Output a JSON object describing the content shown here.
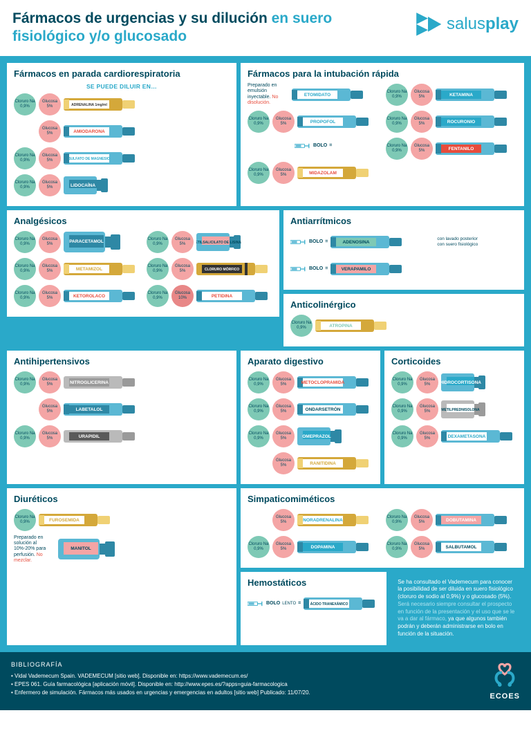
{
  "title_dark": "Fármacos de urgencias y su dilución ",
  "title_light": "en suero fisiológico y/o glucosado",
  "logo_text1": "salus",
  "logo_text2": "play",
  "colors": {
    "primary": "#2aa9c9",
    "dark": "#004a5e",
    "green": "#7ec9b5",
    "pink": "#f4a5a5",
    "pink_dark": "#e88787",
    "yellow": "#f0d174",
    "amber": "#d4a83a",
    "blue": "#5bb8d4",
    "blue_dark": "#2e88a5",
    "grey": "#9a9a9a",
    "dark_grey": "#5a5a5a"
  },
  "circles": {
    "cloruro": {
      "l1": "Cloruro Na",
      "l2": "0,9%"
    },
    "glucosa5": {
      "l1": "Glucosa",
      "l2": "5%"
    },
    "glucosa10": {
      "l1": "Glucosa",
      "l2": "10%"
    }
  },
  "sections": {
    "parada": {
      "title": "Fármacos en parada cardiorespiratoria",
      "subtitle": "SE PUEDE DILUIR EN…",
      "drugs": [
        {
          "circles": [
            "cloruro",
            "glucosa5"
          ],
          "name": "ADRENALINA 1mg/ml",
          "vial": "ampoule-amber",
          "label_bg": "#fff",
          "label_color": "#333"
        },
        {
          "circles": [
            "",
            "glucosa5"
          ],
          "name": "AMIODARONA",
          "vial": "ampoule-blue",
          "label_bg": "#fff",
          "label_color": "#e74c3c"
        },
        {
          "circles": [
            "cloruro",
            "glucosa5"
          ],
          "name": "SULFATO DE MAGNESIO",
          "vial": "ampoule-blue",
          "label_bg": "#fff",
          "label_color": "#2aa9c9"
        },
        {
          "circles": [
            "cloruro",
            "glucosa5"
          ],
          "name": "LIDOCAÍNA",
          "vial": "vial-small-blue",
          "label_bg": "#2e88a5",
          "label_color": "#fff"
        }
      ]
    },
    "intubacion": {
      "title": "Fármacos para la intubación rápida",
      "left": [
        {
          "note": "Preparado en emulsión inyectable.",
          "note_red": "No disolución.",
          "name": "ETOMIDATO",
          "vial": "ampoule-blue",
          "label_bg": "#fff",
          "label_color": "#2aa9c9"
        },
        {
          "circles": [
            "cloruro",
            "glucosa5"
          ],
          "name": "PROPOFOL",
          "vial": "ampoule-blue",
          "label_bg": "#fff",
          "label_color": "#2aa9c9",
          "bolo": true
        },
        {
          "circles": [
            "cloruro",
            "glucosa5"
          ],
          "name": "MIDAZOLAM",
          "vial": "ampoule-amber",
          "label_bg": "#fff",
          "label_color": "#e74c3c"
        }
      ],
      "right": [
        {
          "circles": [
            "cloruro",
            "glucosa5"
          ],
          "name": "KETAMINA",
          "vial": "ampoule-blue",
          "label_bg": "#2aa9c9",
          "label_color": "#fff"
        },
        {
          "circles": [
            "cloruro",
            "glucosa5"
          ],
          "name": "ROCURONIO",
          "vial": "ampoule-blue",
          "label_bg": "#2aa9c9",
          "label_color": "#fff"
        },
        {
          "circles": [
            "cloruro",
            "glucosa5"
          ],
          "name": "FENTANILO",
          "vial": "ampoule-blue",
          "label_bg": "#e74c3c",
          "label_color": "#fff"
        }
      ]
    },
    "analgesicos": {
      "title": "Analgésicos",
      "left": [
        {
          "circles": [
            "cloruro",
            "glucosa5"
          ],
          "name": "PARACETAMOL",
          "vial": "vial-big-blue",
          "label_bg": "#2e88a5",
          "label_color": "#fff"
        },
        {
          "circles": [
            "cloruro",
            "glucosa5"
          ],
          "name": "METAMIZOL",
          "vial": "ampoule-amber",
          "label_bg": "#fff",
          "label_color": "#d4a83a"
        },
        {
          "circles": [
            "cloruro",
            "glucosa5"
          ],
          "name": "KETOROLACO",
          "vial": "ampoule-blue",
          "label_bg": "#fff",
          "label_color": "#e74c3c"
        }
      ],
      "right": [
        {
          "circles": [
            "cloruro",
            "glucosa5"
          ],
          "name": "ACETILSALICILATO DE LISINA",
          "vial": "vial-small-blue",
          "label_bg": "#f4a5a5",
          "label_color": "#004a5e"
        },
        {
          "circles": [
            "cloruro",
            "glucosa5"
          ],
          "name": "CLORURO MÓRFICO",
          "vial": "ampoule-amber-band",
          "label_bg": "#333",
          "label_color": "#fff"
        },
        {
          "circles": [
            "cloruro",
            "glucosa10"
          ],
          "name": "PETIDINA",
          "vial": "ampoule-blue",
          "label_bg": "#fff",
          "label_color": "#e74c3c",
          "c2_dark": true
        }
      ]
    },
    "antiarritmicos": {
      "title": "Antiarrítmicos",
      "drugs": [
        {
          "bolo": true,
          "name": "ADENOSINA",
          "vial": "ampoule-blue",
          "label_bg": "#7ec9b5",
          "label_color": "#004a5e",
          "sub": "con lavado posterior con suero fisiológico"
        },
        {
          "bolo": true,
          "name": "VERAPAMILO",
          "vial": "ampoule-blue",
          "label_bg": "#f4a5a5",
          "label_color": "#004a5e"
        }
      ]
    },
    "anticolinergico": {
      "title": "Anticolinérgico",
      "drugs": [
        {
          "circles": [
            "cloruro"
          ],
          "name": "ATROPINA",
          "vial": "ampoule-amber",
          "label_bg": "#fff",
          "label_color": "#7ec9b5"
        }
      ]
    },
    "antihipertensivos": {
      "title": "Antihipertensivos",
      "drugs": [
        {
          "circles": [
            "cloruro",
            "glucosa5"
          ],
          "name": "NITROGLICERINA",
          "vial": "ampoule-grey",
          "label_bg": "#9a9a9a",
          "label_color": "#fff"
        },
        {
          "circles": [
            "",
            "glucosa5"
          ],
          "name": "LABETALOL",
          "vial": "ampoule-blue",
          "label_bg": "#2e88a5",
          "label_color": "#fff"
        },
        {
          "circles": [
            "cloruro",
            "glucosa5"
          ],
          "name": "URAPIDIL",
          "vial": "ampoule-grey",
          "label_bg": "#5a5a5a",
          "label_color": "#fff"
        }
      ]
    },
    "digestivo": {
      "title": "Aparato digestivo",
      "drugs": [
        {
          "circles": [
            "cloruro",
            "glucosa5"
          ],
          "name": "METOCLOPRAMIDA",
          "vial": "ampoule-blue",
          "label_bg": "#fff",
          "label_color": "#e74c3c"
        },
        {
          "circles": [
            "cloruro",
            "glucosa5"
          ],
          "name": "ONDARSETRÓN",
          "vial": "ampoule-blue",
          "label_bg": "#fff",
          "label_color": "#004a5e"
        },
        {
          "circles": [
            "cloruro",
            "glucosa5"
          ],
          "name": "OMEPRAZOL",
          "vial": "vial-small-blue",
          "label_bg": "#2aa9c9",
          "label_color": "#fff"
        },
        {
          "circles": [
            "",
            "glucosa5"
          ],
          "name": "RANITIDINA",
          "vial": "ampoule-amber",
          "label_bg": "#fff",
          "label_color": "#d4a83a"
        }
      ]
    },
    "corticoides": {
      "title": "Corticoides",
      "drugs": [
        {
          "circles": [
            "cloruro",
            "glucosa5"
          ],
          "name": "HIDROCORTISONA",
          "vial": "vial-small-blue",
          "label_bg": "#2aa9c9",
          "label_color": "#fff"
        },
        {
          "circles": [
            "cloruro",
            "glucosa5"
          ],
          "name": "METILPREDNISOLONA",
          "vial": "vial-small-grey",
          "label_bg": "#fff",
          "label_color": "#004a5e"
        },
        {
          "circles": [
            "cloruro",
            "glucosa5"
          ],
          "name": "DEXAMETASONA",
          "vial": "ampoule-blue",
          "label_bg": "#fff",
          "label_color": "#2aa9c9"
        }
      ]
    },
    "diureticos": {
      "title": "Diuréticos",
      "drugs": [
        {
          "circles": [
            "cloruro"
          ],
          "name": "FUROSEMIDA",
          "vial": "ampoule-amber",
          "label_bg": "#fff",
          "label_color": "#d4a83a"
        },
        {
          "note": "Preparado en solución al 10%-20% para perfusión.",
          "note_red": "No mezclar.",
          "name": "MANITOL",
          "vial": "vial-big-blue",
          "label_bg": "#f4a5a5",
          "label_color": "#004a5e"
        }
      ]
    },
    "simpaticomimeticos": {
      "title": "Simpaticomiméticos",
      "left": [
        {
          "circles": [
            "",
            "glucosa5"
          ],
          "name": "NORADRENALINA",
          "vial": "ampoule-amber",
          "label_bg": "#fff",
          "label_color": "#2aa9c9"
        },
        {
          "circles": [
            "cloruro",
            "glucosa5"
          ],
          "name": "DOPAMINA",
          "vial": "ampoule-blue",
          "label_bg": "#2aa9c9",
          "label_color": "#fff"
        }
      ],
      "right": [
        {
          "circles": [
            "cloruro",
            "glucosa5"
          ],
          "name": "DOBUTAMINA",
          "vial": "ampoule-blue",
          "label_bg": "#f4a5a5",
          "label_color": "#fff"
        },
        {
          "circles": [
            "cloruro",
            "glucosa5"
          ],
          "name": "SALBUTAMOL",
          "vial": "ampoule-blue",
          "label_bg": "#fff",
          "label_color": "#004a5e"
        }
      ]
    },
    "hemostaticos": {
      "title": "Hemostáticos",
      "drugs": [
        {
          "bolo": "LENTO",
          "name": "ÁCIDO TRANEXÁMICO",
          "vial": "ampoule-blue",
          "label_bg": "#fff",
          "label_color": "#004a5e"
        }
      ]
    }
  },
  "note": {
    "p1": "Se ha consultado el Vademecum para conocer la posibilidad de ser diluida en suero fisiológico (cloruro de sodio al 0,9%) y o glucosado (5%). ",
    "p2": "Será necesario siempre consultar el prospecto en función de la presentación y el uso que se le va a dar al fármaco, ",
    "p3": "ya que algunos también podrán y deberán administrarse en bolo en función de la situación."
  },
  "footer": {
    "title": "BIBLIOGRAFÍA",
    "items": [
      "• Vidal Vademecum Spain. VADEMECUM [sitio web]. Disponible en: https://www.vademecum.es/",
      "• EPES 061. Guía farmacológica [aplicación móvil]. Disponible en: http://www.epes.es/?apps=guia-farmacologica",
      "• Enfermero de simulación. Fármacos más usados en urgencias y emergencias en adultos [sitio web] Publicado: 11/07/20."
    ],
    "ecoes": "ECOES"
  }
}
